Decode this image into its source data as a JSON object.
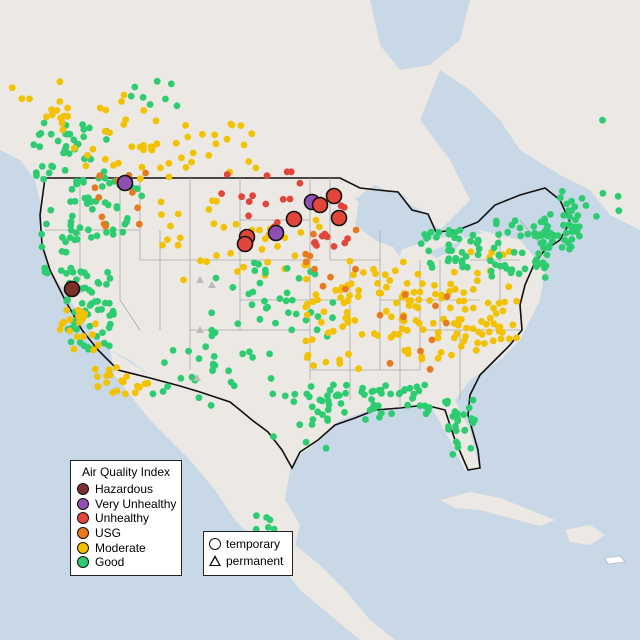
{
  "legend": {
    "title": "Air Quality Index",
    "categories": [
      {
        "label": "Hazardous",
        "color": "#7e2f2a"
      },
      {
        "label": "Very Unhealthy",
        "color": "#8e4fb0"
      },
      {
        "label": "Unhealthy",
        "color": "#e2463b"
      },
      {
        "label": "USG",
        "color": "#e77a1f"
      },
      {
        "label": "Moderate",
        "color": "#f2c200"
      },
      {
        "label": "Good",
        "color": "#2ecc71"
      }
    ]
  },
  "site_legend": {
    "temporary": "temporary",
    "permanent": "permanent"
  },
  "colors": {
    "ocean": "#c9d8e6",
    "land": "#ece9e4",
    "border": "#111111"
  }
}
